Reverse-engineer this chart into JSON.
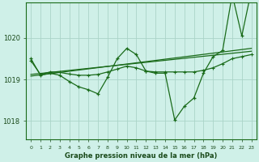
{
  "background_color": "#cff0e8",
  "grid_color": "#aad4c8",
  "line_color": "#1a6b1a",
  "title": "Graphe pression niveau de la mer (hPa)",
  "ylabel_ticks": [
    1018,
    1019,
    1020
  ],
  "xlim": [
    -0.5,
    23.5
  ],
  "ylim": [
    1017.55,
    1020.85
  ],
  "x_ticks": [
    0,
    1,
    2,
    3,
    4,
    5,
    6,
    7,
    8,
    9,
    10,
    11,
    12,
    13,
    14,
    15,
    16,
    17,
    18,
    19,
    20,
    21,
    22,
    23
  ],
  "main_line": {
    "x": [
      0,
      1,
      2,
      3,
      4,
      5,
      6,
      7,
      8,
      9,
      10,
      11,
      12,
      13,
      14,
      15,
      16,
      17,
      18,
      19,
      20,
      21,
      22,
      23
    ],
    "y": [
      1019.5,
      1019.1,
      1019.15,
      1019.1,
      1018.95,
      1018.82,
      1018.75,
      1018.65,
      1019.05,
      1019.5,
      1019.75,
      1019.6,
      1019.2,
      1019.15,
      1019.15,
      1018.02,
      1018.35,
      1018.55,
      1019.15,
      1019.55,
      1019.7,
      1021.05,
      1020.05,
      1021.15
    ]
  },
  "line_min": {
    "x": [
      0,
      1,
      2,
      3,
      4,
      5,
      6,
      7,
      8,
      9,
      10,
      11,
      12,
      13,
      14,
      15,
      16,
      17,
      18,
      19,
      20,
      21,
      22,
      23
    ],
    "y": [
      1019.5,
      1019.1,
      1019.15,
      1019.1,
      1018.95,
      1018.82,
      1018.75,
      1018.65,
      1019.05,
      1019.5,
      1019.75,
      1019.6,
      1019.2,
      1019.15,
      1019.15,
      1018.02,
      1018.35,
      1018.55,
      1019.15,
      1019.55,
      1019.7,
      1021.05,
      1020.05,
      1021.15
    ]
  },
  "line_avg": {
    "x": [
      0,
      1,
      2,
      3,
      4,
      5,
      6,
      7,
      8,
      9,
      10,
      11,
      12,
      13,
      14,
      15,
      16,
      17,
      18,
      19,
      20,
      21,
      22,
      23
    ],
    "y": [
      1019.45,
      1019.12,
      1019.18,
      1019.17,
      1019.13,
      1019.1,
      1019.1,
      1019.12,
      1019.18,
      1019.25,
      1019.32,
      1019.28,
      1019.2,
      1019.18,
      1019.18,
      1019.18,
      1019.18,
      1019.18,
      1019.22,
      1019.28,
      1019.38,
      1019.5,
      1019.55,
      1019.6
    ]
  },
  "line_trend1": {
    "x": [
      0,
      23
    ],
    "y": [
      1019.12,
      1019.68
    ]
  },
  "line_trend2": {
    "x": [
      0,
      23
    ],
    "y": [
      1019.08,
      1019.75
    ]
  }
}
